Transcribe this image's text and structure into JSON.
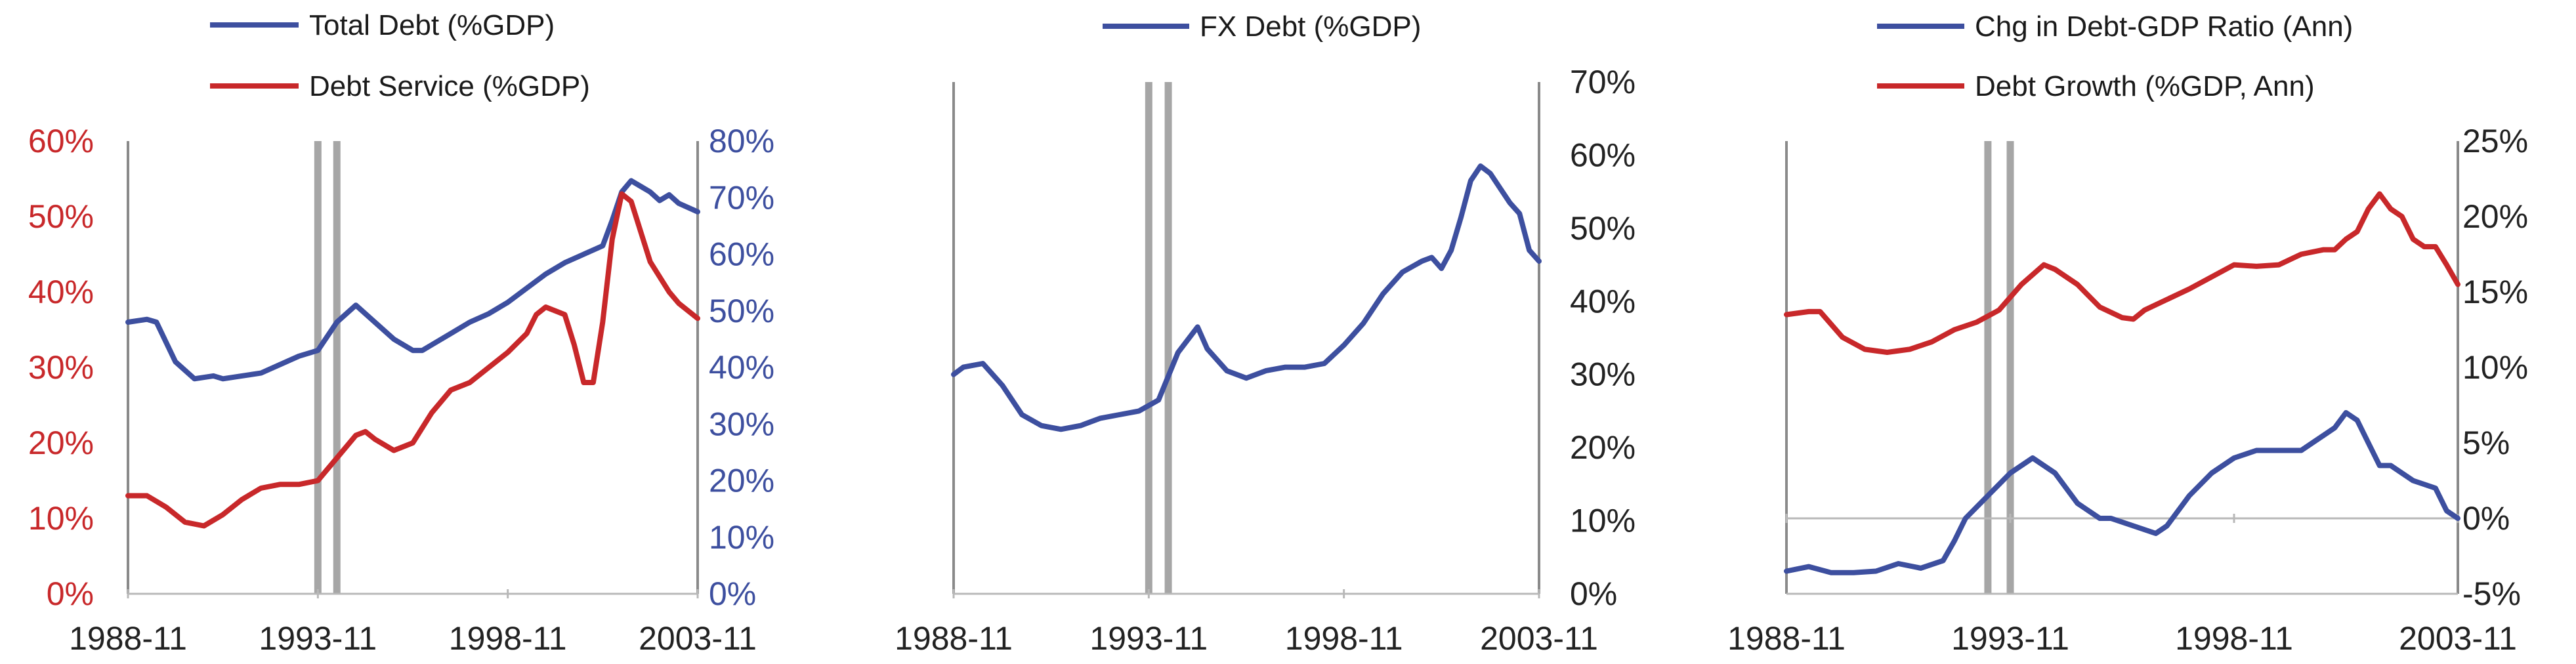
{
  "colors": {
    "blue": "#3d4f9f",
    "red": "#c8282a",
    "axis": "#8a8a8a",
    "bar": "#a6a6a6",
    "tick_text": "#222222"
  },
  "chart_data": [
    {
      "type": "line",
      "legend_placement": "top",
      "x": [
        "1988-11",
        "1993-11",
        "1998-11",
        "2003-11"
      ],
      "xlim": [
        "1988-11",
        "2003-11"
      ],
      "xtick_labels": [
        "1988-11",
        "1993-11",
        "1998-11",
        "2003-11"
      ],
      "vertical_markers": [
        "1993-11",
        "1994-05"
      ],
      "left_axis": {
        "ylim": [
          0,
          0.6
        ],
        "ticks": [
          "0%",
          "10%",
          "20%",
          "30%",
          "40%",
          "50%",
          "60%"
        ],
        "color": "red"
      },
      "right_axis": {
        "ylim": [
          0,
          0.8
        ],
        "ticks": [
          "0%",
          "10%",
          "20%",
          "30%",
          "40%",
          "50%",
          "60%",
          "70%",
          "80%"
        ],
        "color": "blue"
      },
      "series": [
        {
          "name": "Total Debt (%GDP)",
          "color": "blue",
          "axis": "right",
          "points": [
            [
              "1988-11",
              0.48
            ],
            [
              "1989-05",
              0.485
            ],
            [
              "1989-08",
              0.48
            ],
            [
              "1990-02",
              0.41
            ],
            [
              "1990-08",
              0.38
            ],
            [
              "1991-02",
              0.385
            ],
            [
              "1991-05",
              0.38
            ],
            [
              "1991-11",
              0.385
            ],
            [
              "1992-05",
              0.39
            ],
            [
              "1992-11",
              0.405
            ],
            [
              "1993-05",
              0.42
            ],
            [
              "1993-11",
              0.43
            ],
            [
              "1994-05",
              0.48
            ],
            [
              "1994-11",
              0.51
            ],
            [
              "1995-05",
              0.48
            ],
            [
              "1995-11",
              0.45
            ],
            [
              "1996-05",
              0.43
            ],
            [
              "1996-08",
              0.43
            ],
            [
              "1996-11",
              0.44
            ],
            [
              "1997-05",
              0.46
            ],
            [
              "1997-11",
              0.48
            ],
            [
              "1998-05",
              0.495
            ],
            [
              "1998-11",
              0.515
            ],
            [
              "1999-05",
              0.54
            ],
            [
              "1999-11",
              0.565
            ],
            [
              "2000-05",
              0.585
            ],
            [
              "2000-11",
              0.6
            ],
            [
              "2001-05",
              0.615
            ],
            [
              "2001-08",
              0.66
            ],
            [
              "2001-11",
              0.71
            ],
            [
              "2002-02",
              0.73
            ],
            [
              "2002-05",
              0.72
            ],
            [
              "2002-08",
              0.71
            ],
            [
              "2002-11",
              0.695
            ],
            [
              "2003-02",
              0.705
            ],
            [
              "2003-05",
              0.69
            ],
            [
              "2003-11",
              0.675
            ]
          ]
        },
        {
          "name": "Debt Service (%GDP)",
          "color": "red",
          "axis": "left",
          "points": [
            [
              "1988-11",
              0.13
            ],
            [
              "1989-05",
              0.13
            ],
            [
              "1989-11",
              0.115
            ],
            [
              "1990-05",
              0.095
            ],
            [
              "1990-11",
              0.09
            ],
            [
              "1991-05",
              0.105
            ],
            [
              "1991-11",
              0.125
            ],
            [
              "1992-05",
              0.14
            ],
            [
              "1992-11",
              0.145
            ],
            [
              "1993-05",
              0.145
            ],
            [
              "1993-11",
              0.15
            ],
            [
              "1994-05",
              0.18
            ],
            [
              "1994-11",
              0.21
            ],
            [
              "1995-02",
              0.215
            ],
            [
              "1995-05",
              0.205
            ],
            [
              "1995-11",
              0.19
            ],
            [
              "1996-05",
              0.2
            ],
            [
              "1996-11",
              0.24
            ],
            [
              "1997-05",
              0.27
            ],
            [
              "1997-11",
              0.28
            ],
            [
              "1998-05",
              0.3
            ],
            [
              "1998-11",
              0.32
            ],
            [
              "1999-05",
              0.345
            ],
            [
              "1999-08",
              0.37
            ],
            [
              "1999-11",
              0.38
            ],
            [
              "2000-05",
              0.37
            ],
            [
              "2000-08",
              0.33
            ],
            [
              "2000-11",
              0.28
            ],
            [
              "2001-02",
              0.28
            ],
            [
              "2001-05",
              0.36
            ],
            [
              "2001-08",
              0.47
            ],
            [
              "2001-11",
              0.53
            ],
            [
              "2002-02",
              0.52
            ],
            [
              "2002-08",
              0.44
            ],
            [
              "2003-02",
              0.4
            ],
            [
              "2003-05",
              0.385
            ],
            [
              "2003-11",
              0.365
            ]
          ]
        }
      ]
    },
    {
      "type": "line",
      "legend_placement": "top",
      "x": [
        "1988-11",
        "1993-11",
        "1998-11",
        "2003-11"
      ],
      "xlim": [
        "1988-11",
        "2003-11"
      ],
      "xtick_labels": [
        "1988-11",
        "1993-11",
        "1998-11",
        "2003-11"
      ],
      "vertical_markers": [
        "1993-11",
        "1994-05"
      ],
      "right_axis": {
        "ylim": [
          0,
          0.7
        ],
        "ticks": [
          "0%",
          "10%",
          "20%",
          "30%",
          "40%",
          "50%",
          "60%",
          "70%"
        ],
        "color": "tick_text"
      },
      "series": [
        {
          "name": "FX Debt (%GDP)",
          "color": "blue",
          "axis": "right",
          "points": [
            [
              "1988-11",
              0.3
            ],
            [
              "1989-02",
              0.31
            ],
            [
              "1989-08",
              0.315
            ],
            [
              "1990-02",
              0.285
            ],
            [
              "1990-08",
              0.245
            ],
            [
              "1991-02",
              0.23
            ],
            [
              "1991-08",
              0.225
            ],
            [
              "1992-02",
              0.23
            ],
            [
              "1992-08",
              0.24
            ],
            [
              "1993-02",
              0.245
            ],
            [
              "1993-08",
              0.25
            ],
            [
              "1994-02",
              0.265
            ],
            [
              "1994-08",
              0.33
            ],
            [
              "1995-02",
              0.365
            ],
            [
              "1995-05",
              0.335
            ],
            [
              "1995-11",
              0.305
            ],
            [
              "1996-05",
              0.295
            ],
            [
              "1996-11",
              0.305
            ],
            [
              "1997-05",
              0.31
            ],
            [
              "1997-11",
              0.31
            ],
            [
              "1998-05",
              0.315
            ],
            [
              "1998-11",
              0.34
            ],
            [
              "1999-05",
              0.37
            ],
            [
              "1999-11",
              0.41
            ],
            [
              "2000-05",
              0.44
            ],
            [
              "2000-11",
              0.455
            ],
            [
              "2001-02",
              0.46
            ],
            [
              "2001-05",
              0.445
            ],
            [
              "2001-08",
              0.47
            ],
            [
              "2001-11",
              0.515
            ],
            [
              "2002-02",
              0.565
            ],
            [
              "2002-05",
              0.585
            ],
            [
              "2002-08",
              0.575
            ],
            [
              "2002-11",
              0.555
            ],
            [
              "2003-02",
              0.535
            ],
            [
              "2003-05",
              0.52
            ],
            [
              "2003-08",
              0.47
            ],
            [
              "2003-11",
              0.455
            ]
          ]
        }
      ]
    },
    {
      "type": "line",
      "legend_placement": "top",
      "x": [
        "1988-11",
        "1993-11",
        "1998-11",
        "2003-11"
      ],
      "xlim": [
        "1988-11",
        "2003-11"
      ],
      "xtick_labels": [
        "1988-11",
        "1993-11",
        "1998-11",
        "2003-11"
      ],
      "vertical_markers": [
        "1993-05",
        "1993-11"
      ],
      "right_axis": {
        "ylim": [
          -0.05,
          0.25
        ],
        "ticks": [
          "-5%",
          "0%",
          "5%",
          "10%",
          "15%",
          "20%",
          "25%"
        ],
        "color": "tick_text"
      },
      "zero_line": 0,
      "series": [
        {
          "name": "Chg in Debt-GDP Ratio (Ann)",
          "color": "blue",
          "axis": "right",
          "points": [
            [
              "1988-11",
              -0.035
            ],
            [
              "1989-05",
              -0.032
            ],
            [
              "1989-11",
              -0.036
            ],
            [
              "1990-05",
              -0.036
            ],
            [
              "1990-11",
              -0.035
            ],
            [
              "1991-05",
              -0.03
            ],
            [
              "1991-11",
              -0.033
            ],
            [
              "1992-05",
              -0.028
            ],
            [
              "1992-08",
              -0.015
            ],
            [
              "1992-11",
              0.0
            ],
            [
              "1993-05",
              0.015
            ],
            [
              "1993-11",
              0.03
            ],
            [
              "1994-05",
              0.04
            ],
            [
              "1994-11",
              0.03
            ],
            [
              "1995-05",
              0.01
            ],
            [
              "1995-11",
              0.0
            ],
            [
              "1996-02",
              0.0
            ],
            [
              "1996-08",
              -0.005
            ],
            [
              "1997-02",
              -0.01
            ],
            [
              "1997-05",
              -0.005
            ],
            [
              "1997-11",
              0.015
            ],
            [
              "1998-05",
              0.03
            ],
            [
              "1998-11",
              0.04
            ],
            [
              "1999-05",
              0.045
            ],
            [
              "1999-11",
              0.045
            ],
            [
              "2000-05",
              0.045
            ],
            [
              "2000-08",
              0.05
            ],
            [
              "2000-11",
              0.055
            ],
            [
              "2001-02",
              0.06
            ],
            [
              "2001-05",
              0.07
            ],
            [
              "2001-08",
              0.065
            ],
            [
              "2001-11",
              0.05
            ],
            [
              "2002-02",
              0.035
            ],
            [
              "2002-05",
              0.035
            ],
            [
              "2002-11",
              0.025
            ],
            [
              "2003-05",
              0.02
            ],
            [
              "2003-08",
              0.005
            ],
            [
              "2003-11",
              0.0
            ]
          ]
        },
        {
          "name": "Debt Growth (%GDP, Ann)",
          "color": "red",
          "axis": "right",
          "points": [
            [
              "1988-11",
              0.135
            ],
            [
              "1989-05",
              0.137
            ],
            [
              "1989-08",
              0.137
            ],
            [
              "1990-02",
              0.12
            ],
            [
              "1990-08",
              0.112
            ],
            [
              "1991-02",
              0.11
            ],
            [
              "1991-08",
              0.112
            ],
            [
              "1992-02",
              0.117
            ],
            [
              "1992-08",
              0.125
            ],
            [
              "1993-02",
              0.13
            ],
            [
              "1993-08",
              0.138
            ],
            [
              "1994-02",
              0.155
            ],
            [
              "1994-08",
              0.168
            ],
            [
              "1994-11",
              0.165
            ],
            [
              "1995-05",
              0.155
            ],
            [
              "1995-11",
              0.14
            ],
            [
              "1996-05",
              0.133
            ],
            [
              "1996-08",
              0.132
            ],
            [
              "1996-11",
              0.138
            ],
            [
              "1997-05",
              0.145
            ],
            [
              "1997-11",
              0.152
            ],
            [
              "1998-05",
              0.16
            ],
            [
              "1998-11",
              0.168
            ],
            [
              "1999-05",
              0.167
            ],
            [
              "1999-11",
              0.168
            ],
            [
              "2000-05",
              0.175
            ],
            [
              "2000-11",
              0.178
            ],
            [
              "2001-02",
              0.178
            ],
            [
              "2001-05",
              0.185
            ],
            [
              "2001-08",
              0.19
            ],
            [
              "2001-11",
              0.205
            ],
            [
              "2002-02",
              0.215
            ],
            [
              "2002-05",
              0.205
            ],
            [
              "2002-08",
              0.2
            ],
            [
              "2002-11",
              0.185
            ],
            [
              "2003-02",
              0.18
            ],
            [
              "2003-05",
              0.18
            ],
            [
              "2003-08",
              0.168
            ],
            [
              "2003-11",
              0.155
            ]
          ]
        }
      ]
    }
  ]
}
